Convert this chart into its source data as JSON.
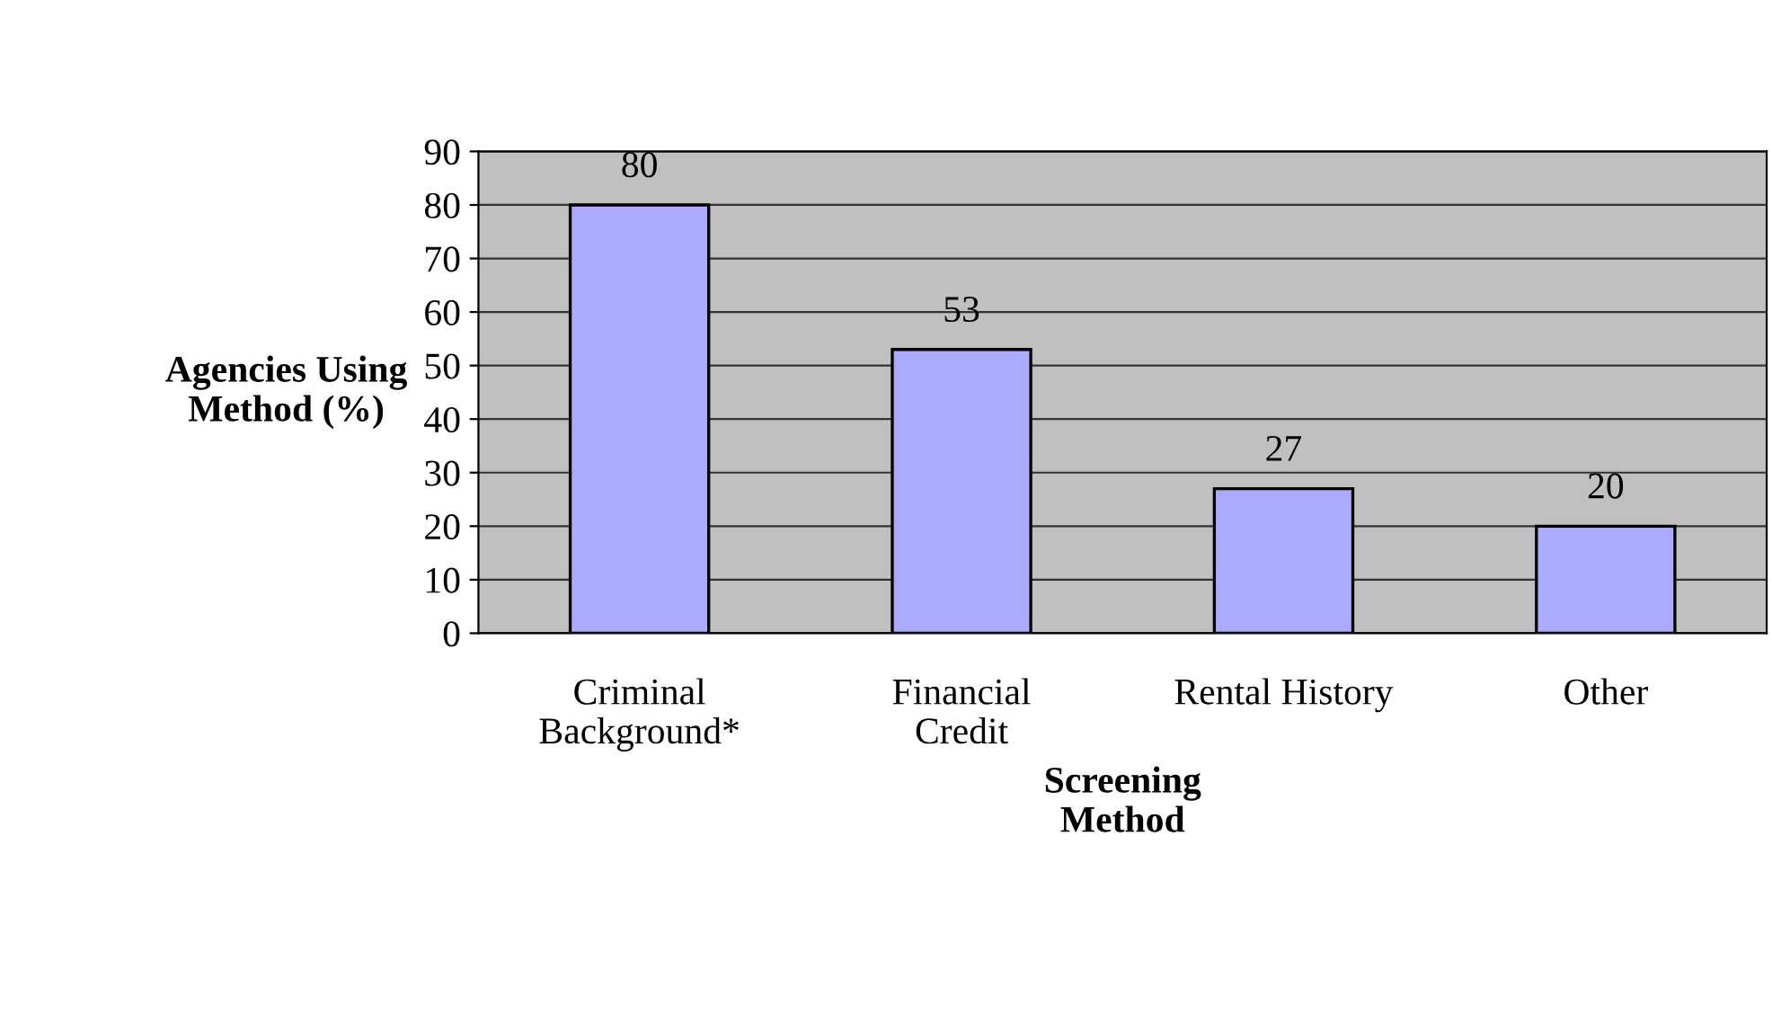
{
  "chart_data": {
    "type": "bar",
    "xlabel": "Screening\nMethod",
    "ylabel": "Agencies Using\nMethod (%)",
    "categories": [
      "Criminal\nBackground*",
      "Financial\nCredit",
      "Rental History",
      "Other"
    ],
    "values": [
      80,
      53,
      27,
      20
    ],
    "color": "#aaaaff",
    "ylim": [
      0,
      90
    ],
    "yticks": [
      0,
      10,
      20,
      30,
      40,
      50,
      60,
      70,
      80,
      90
    ],
    "grid": "y",
    "data_labels": true
  }
}
